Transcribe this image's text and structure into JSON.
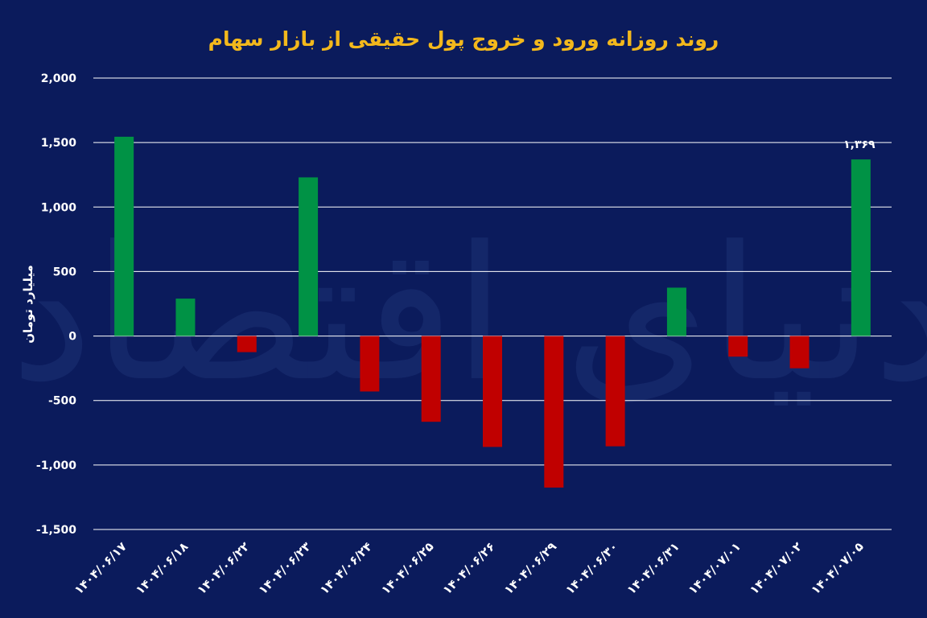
{
  "chart_data": {
    "type": "bar",
    "title": "روند روزانه ورود و خروج پول حقیقی از بازار سهام",
    "ylabel": "میلیارد تومان",
    "xlabel": "",
    "ylim": [
      -1500,
      2000
    ],
    "yticks": [
      2000,
      1500,
      1000,
      500,
      0,
      -500,
      -1000,
      -1500
    ],
    "ytick_labels": [
      "2,000",
      "1,500",
      "1,000",
      "500",
      "0",
      "-500",
      "-1,000",
      "-1,500"
    ],
    "grid": "horizontal",
    "categories": [
      "۱۴۰۴/۰۶/۱۷",
      "۱۴۰۴/۰۶/۱۸",
      "۱۴۰۴/۰۶/۲۲",
      "۱۴۰۴/۰۶/۲۳",
      "۱۴۰۴/۰۶/۲۴",
      "۱۴۰۴/۰۶/۲۵",
      "۱۴۰۴/۰۶/۲۶",
      "۱۴۰۴/۰۶/۲۹",
      "۱۴۰۴/۰۶/۳۰",
      "۱۴۰۴/۰۶/۳۱",
      "۱۴۰۴/۰۷/۰۱",
      "۱۴۰۴/۰۷/۰۲",
      "۱۴۰۴/۰۷/۰۵"
    ],
    "values": [
      1545,
      290,
      -125,
      1230,
      -430,
      -665,
      -860,
      -1175,
      -855,
      375,
      -160,
      -250,
      1369
    ],
    "data_labels": [
      {
        "index": 12,
        "text": "۱,۳۶۹"
      }
    ],
    "colors": {
      "positive": "#009245",
      "negative": "#c00000",
      "background": "#0b1b5c",
      "grid": "#ffffff",
      "title": "#f3b81c",
      "watermark": "#1d3175"
    }
  },
  "watermark": "دنیای اقتصاد"
}
